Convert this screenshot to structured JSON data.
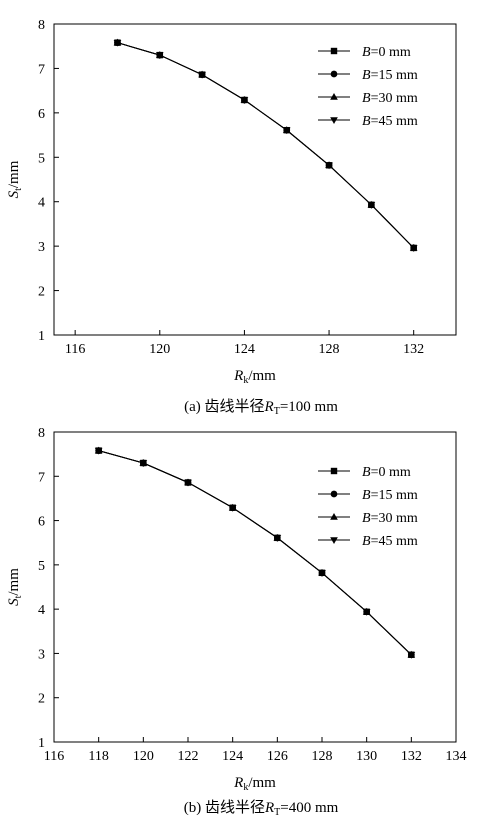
{
  "chart_data": [
    {
      "type": "line",
      "caption_prefix": "(a) 齿线半径",
      "caption_sym": "R",
      "caption_sub": "T",
      "caption_suffix": "=100 mm",
      "xlabel_sym": "R",
      "xlabel_sub": "k",
      "xlabel_unit": "/mm",
      "ylabel_sym": "S",
      "ylabel_sub": "t",
      "ylabel_unit": "/mm",
      "xlim": [
        115,
        134
      ],
      "ylim": [
        1,
        8
      ],
      "xticks": [
        116,
        120,
        124,
        128,
        132
      ],
      "yticks": [
        1,
        2,
        3,
        4,
        5,
        6,
        7,
        8
      ],
      "legend_position": "top-right",
      "series": [
        {
          "name_sym": "B",
          "name_rest": "=0 mm",
          "marker": "square",
          "x": [
            118,
            120,
            122,
            124,
            126,
            128,
            130,
            132
          ],
          "y": [
            7.58,
            7.3,
            6.86,
            6.29,
            5.61,
            4.82,
            3.93,
            2.96
          ]
        },
        {
          "name_sym": "B",
          "name_rest": "=15 mm",
          "marker": "circle",
          "x": [
            118,
            120,
            122,
            124,
            126,
            128,
            130,
            132
          ],
          "y": [
            7.58,
            7.3,
            6.86,
            6.29,
            5.61,
            4.82,
            3.93,
            2.96
          ]
        },
        {
          "name_sym": "B",
          "name_rest": "=30 mm",
          "marker": "triangle-up",
          "x": [
            118,
            120,
            122,
            124,
            126,
            128,
            130,
            132
          ],
          "y": [
            7.58,
            7.3,
            6.86,
            6.29,
            5.61,
            4.82,
            3.93,
            2.96
          ]
        },
        {
          "name_sym": "B",
          "name_rest": "=45 mm",
          "marker": "triangle-down",
          "x": [
            118,
            120,
            122,
            124,
            126,
            128,
            130,
            132
          ],
          "y": [
            7.58,
            7.3,
            6.86,
            6.29,
            5.61,
            4.82,
            3.93,
            2.96
          ]
        }
      ]
    },
    {
      "type": "line",
      "caption_prefix": "(b) 齿线半径",
      "caption_sym": "R",
      "caption_sub": "T",
      "caption_suffix": "=400 mm",
      "xlabel_sym": "R",
      "xlabel_sub": "k",
      "xlabel_unit": "/mm",
      "ylabel_sym": "S",
      "ylabel_sub": "t",
      "ylabel_unit": "/mm",
      "xlim": [
        116,
        134
      ],
      "ylim": [
        1,
        8
      ],
      "xticks": [
        116,
        118,
        120,
        122,
        124,
        126,
        128,
        130,
        132,
        134
      ],
      "yticks": [
        1,
        2,
        3,
        4,
        5,
        6,
        7,
        8
      ],
      "legend_position": "top-right",
      "series": [
        {
          "name_sym": "B",
          "name_rest": "=0 mm",
          "marker": "square",
          "x": [
            118,
            120,
            122,
            124,
            126,
            128,
            130,
            132
          ],
          "y": [
            7.58,
            7.3,
            6.86,
            6.29,
            5.61,
            4.82,
            3.94,
            2.97
          ]
        },
        {
          "name_sym": "B",
          "name_rest": "=15 mm",
          "marker": "circle",
          "x": [
            118,
            120,
            122,
            124,
            126,
            128,
            130,
            132
          ],
          "y": [
            7.58,
            7.3,
            6.86,
            6.29,
            5.61,
            4.82,
            3.94,
            2.97
          ]
        },
        {
          "name_sym": "B",
          "name_rest": "=30 mm",
          "marker": "triangle-up",
          "x": [
            118,
            120,
            122,
            124,
            126,
            128,
            130,
            132
          ],
          "y": [
            7.58,
            7.3,
            6.86,
            6.29,
            5.61,
            4.82,
            3.94,
            2.97
          ]
        },
        {
          "name_sym": "B",
          "name_rest": "=45 mm",
          "marker": "triangle-down",
          "x": [
            118,
            120,
            122,
            124,
            126,
            128,
            130,
            132
          ],
          "y": [
            7.58,
            7.3,
            6.86,
            6.29,
            5.61,
            4.82,
            3.94,
            2.97
          ]
        }
      ]
    }
  ]
}
